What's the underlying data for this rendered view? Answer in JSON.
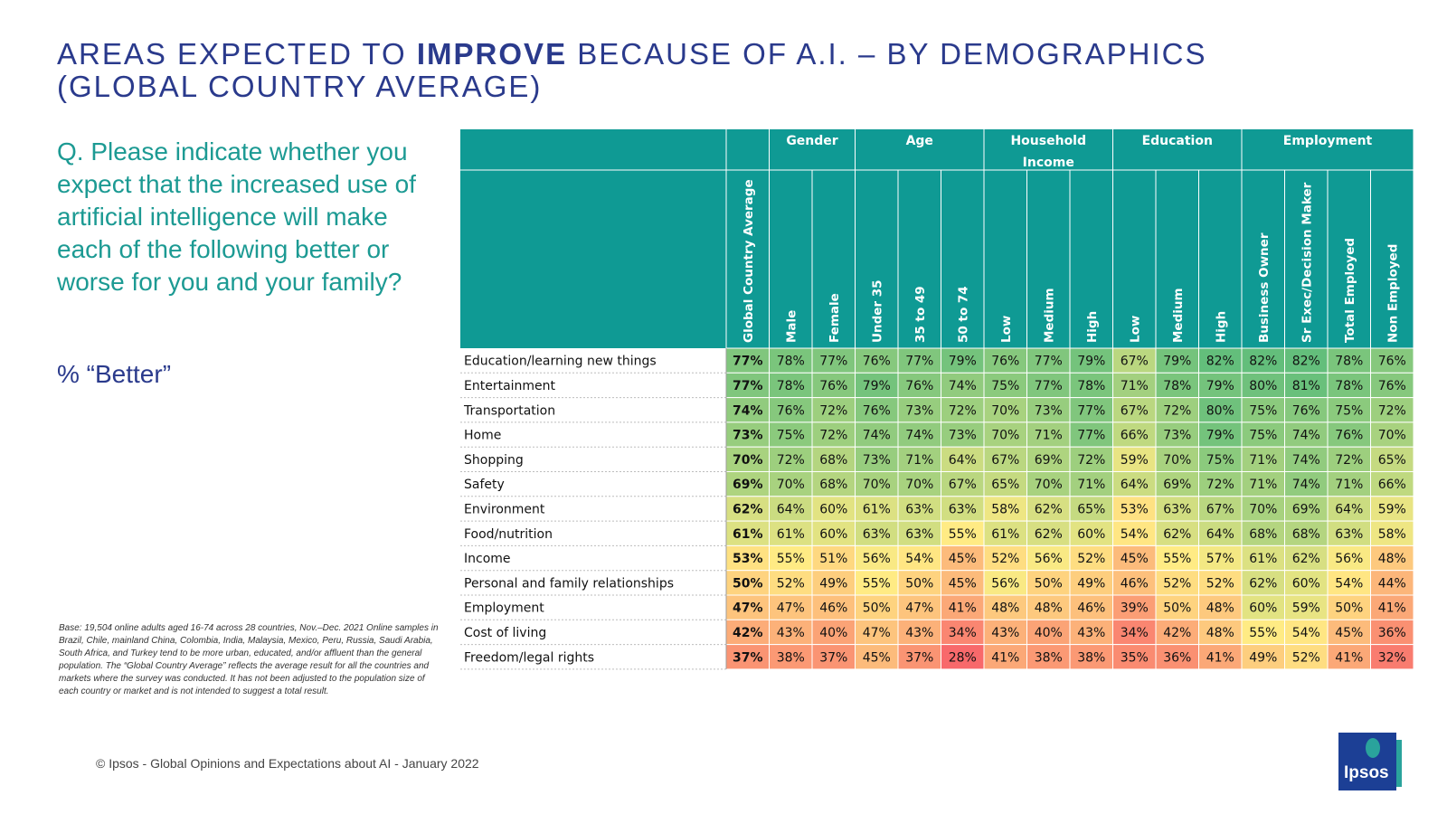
{
  "title": {
    "part1": "AREAS EXPECTED TO ",
    "emph": "IMPROVE",
    "part2": " BECAUSE OF A.I. – BY DEMOGRAPHICS",
    "line2": "(GLOBAL COUNTRY AVERAGE)"
  },
  "question": "Q. Please indicate whether you expect that the increased use of artificial intelligence will make each of the following better or worse for you and your family?",
  "subquestion": "% “Better”",
  "base_note": "Base: 19,504 online adults aged 16-74 across 28 countries, Nov.–Dec. 2021 Online samples in Brazil, Chile, mainland China, Colombia, India, Malaysia, Mexico, Peru, Russia, Saudi Arabia, South Africa, and Turkey tend to be more urban, educated, and/or affluent than the general population. The “Global Country Average” reflects the average result for all the countries and markets where the survey was conducted. It has not been adjusted to the population size of each country or market and is not intended to suggest a total result.",
  "footer": "© Ipsos - Global Opinions and Expectations about AI - January 2022",
  "logo_text": "Ipsos",
  "colors": {
    "header": "#0f9a94",
    "title": "#2a3a8c",
    "question": "#1c9a93"
  },
  "chart_data": {
    "type": "table",
    "groups": [
      {
        "label": "Gender",
        "span": 2
      },
      {
        "label": "Age",
        "span": 3
      },
      {
        "label": "Household\nIncome",
        "span": 3
      },
      {
        "label": "Education",
        "span": 3
      },
      {
        "label": "Employment",
        "span": 4
      }
    ],
    "columns": [
      "Global Country Average",
      "Male",
      "Female",
      "Under 35",
      "35 to 49",
      "50 to 74",
      "Low",
      "Medium",
      "High",
      "Low",
      "Medium",
      "High",
      "Business Owner",
      "Sr Exec/Decision Maker",
      "Total Employed",
      "Non Employed"
    ],
    "rows": [
      {
        "label": "Education/learning new things",
        "values": [
          77,
          78,
          77,
          76,
          77,
          79,
          76,
          77,
          79,
          67,
          79,
          82,
          82,
          82,
          78,
          76
        ]
      },
      {
        "label": "Entertainment",
        "values": [
          77,
          78,
          76,
          79,
          76,
          74,
          75,
          77,
          78,
          71,
          78,
          79,
          80,
          81,
          78,
          76
        ]
      },
      {
        "label": "Transportation",
        "values": [
          74,
          76,
          72,
          76,
          73,
          72,
          70,
          73,
          77,
          67,
          72,
          80,
          75,
          76,
          75,
          72
        ]
      },
      {
        "label": "Home",
        "values": [
          73,
          75,
          72,
          74,
          74,
          73,
          70,
          71,
          77,
          66,
          73,
          79,
          75,
          74,
          76,
          70
        ]
      },
      {
        "label": "Shopping",
        "values": [
          70,
          72,
          68,
          73,
          71,
          64,
          67,
          69,
          72,
          59,
          70,
          75,
          71,
          74,
          72,
          65
        ]
      },
      {
        "label": "Safety",
        "values": [
          69,
          70,
          68,
          70,
          70,
          67,
          65,
          70,
          71,
          64,
          69,
          72,
          71,
          74,
          71,
          66
        ]
      },
      {
        "label": "Environment",
        "values": [
          62,
          64,
          60,
          61,
          63,
          63,
          58,
          62,
          65,
          53,
          63,
          67,
          70,
          69,
          64,
          59
        ]
      },
      {
        "label": "Food/nutrition",
        "values": [
          61,
          61,
          60,
          63,
          63,
          55,
          61,
          62,
          60,
          54,
          62,
          64,
          68,
          68,
          63,
          58
        ]
      },
      {
        "label": "Income",
        "values": [
          53,
          55,
          51,
          56,
          54,
          45,
          52,
          56,
          52,
          45,
          55,
          57,
          61,
          62,
          56,
          48
        ]
      },
      {
        "label": "Personal and family relationships",
        "values": [
          50,
          52,
          49,
          55,
          50,
          45,
          56,
          50,
          49,
          46,
          52,
          52,
          62,
          60,
          54,
          44
        ]
      },
      {
        "label": "Employment",
        "values": [
          47,
          47,
          46,
          50,
          47,
          41,
          48,
          48,
          46,
          39,
          50,
          48,
          60,
          59,
          50,
          41
        ]
      },
      {
        "label": "Cost of living",
        "values": [
          42,
          43,
          40,
          47,
          43,
          34,
          43,
          40,
          43,
          34,
          42,
          48,
          55,
          54,
          45,
          36
        ]
      },
      {
        "label": "Freedom/legal rights",
        "values": [
          37,
          38,
          37,
          45,
          37,
          28,
          41,
          38,
          38,
          35,
          36,
          41,
          49,
          52,
          41,
          32
        ]
      }
    ],
    "value_suffix": "%",
    "color_scale": {
      "low": "#f8696b",
      "mid": "#ffeb84",
      "high": "#63be7b",
      "min": 28,
      "max": 82
    }
  }
}
